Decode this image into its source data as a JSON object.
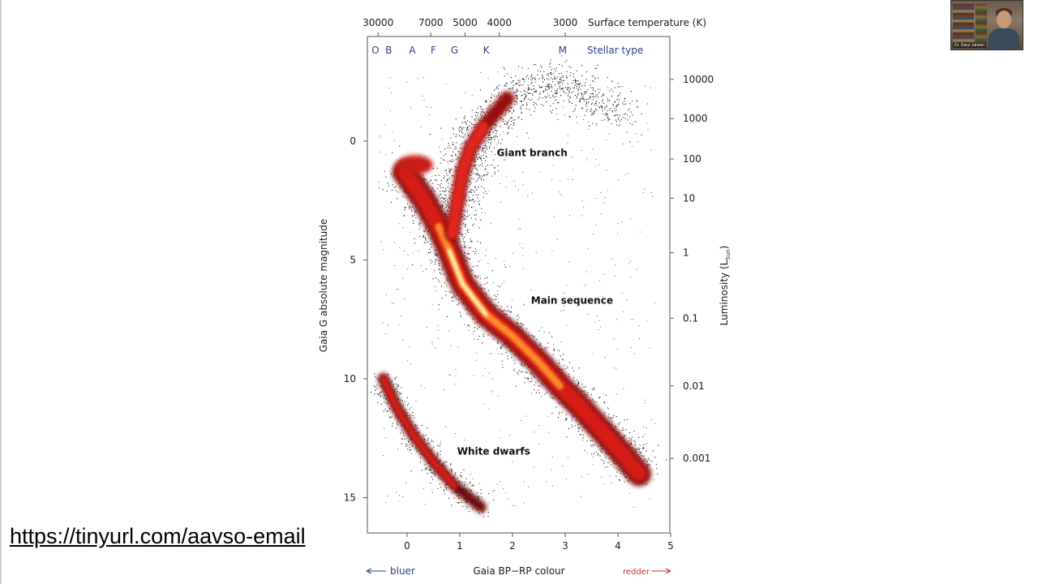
{
  "slide": {
    "link_text": "https://tinyurl.com/aavso-email"
  },
  "webcam": {
    "participant_name": "Dr. Daryl Janzen"
  },
  "chart_data": {
    "type": "scatter",
    "title": "",
    "xlabel": "Gaia BP−RP colour",
    "ylabel": "Gaia G absolute magnitude",
    "y2label": "Luminosity (L",
    "y2label_sub": "Sun",
    "y2label_close": ")",
    "top_axis_label": "Surface temperature (K)",
    "stellar_type_label": "Stellar type",
    "xlim": [
      -0.75,
      5.0
    ],
    "ylim": [
      16.0,
      -4.3
    ],
    "x_ticks": [
      0,
      1,
      2,
      3,
      4,
      5
    ],
    "y_ticks": [
      0,
      5,
      10,
      15
    ],
    "luminosity_ticks": [
      {
        "label": "10000",
        "mag": -2.6
      },
      {
        "label": "1000",
        "mag": -0.95
      },
      {
        "label": "100",
        "mag": 0.75
      },
      {
        "label": "10",
        "mag": 2.4
      },
      {
        "label": "1",
        "mag": 4.7
      },
      {
        "label": "0.1",
        "mag": 7.45
      },
      {
        "label": "0.01",
        "mag": 10.3
      },
      {
        "label": "0.001",
        "mag": 13.35
      }
    ],
    "temperature_ticks": [
      {
        "label": "30000",
        "x": -0.55
      },
      {
        "label": "7000",
        "x": 0.45
      },
      {
        "label": "5000",
        "x": 1.1
      },
      {
        "label": "4000",
        "x": 1.75
      },
      {
        "label": "3000",
        "x": 3.0
      }
    ],
    "stellar_types": [
      {
        "label": "O",
        "x": -0.6
      },
      {
        "label": "B",
        "x": -0.35
      },
      {
        "label": "A",
        "x": 0.1
      },
      {
        "label": "F",
        "x": 0.5
      },
      {
        "label": "G",
        "x": 0.9
      },
      {
        "label": "K",
        "x": 1.5
      },
      {
        "label": "M",
        "x": 2.95
      }
    ],
    "bluer_label": "bluer",
    "redder_label": "redder",
    "regions": [
      {
        "name": "Giant branch",
        "x": 1.7,
        "mag": 0.5
      },
      {
        "name": "Main sequence",
        "x": 2.35,
        "mag": 6.7
      },
      {
        "name": "White dwarfs",
        "x": 0.95,
        "mag": 13.05
      }
    ],
    "sequences": {
      "main_sequence": [
        [
          -0.05,
          1.3
        ],
        [
          0.3,
          2.4
        ],
        [
          0.6,
          3.6
        ],
        [
          0.8,
          4.6
        ],
        [
          1.05,
          6.0
        ],
        [
          1.5,
          7.3
        ],
        [
          2.0,
          8.2
        ],
        [
          2.5,
          9.3
        ],
        [
          2.9,
          10.3
        ],
        [
          3.3,
          11.2
        ],
        [
          3.7,
          12.2
        ],
        [
          4.1,
          13.2
        ],
        [
          4.4,
          14.0
        ]
      ],
      "giant_branch": [
        [
          0.85,
          3.9
        ],
        [
          0.95,
          2.6
        ],
        [
          1.05,
          1.3
        ],
        [
          1.2,
          0.3
        ],
        [
          1.45,
          -0.6
        ],
        [
          1.9,
          -1.8
        ],
        [
          2.6,
          -2.5
        ],
        [
          3.4,
          -2.0
        ],
        [
          4.2,
          -1.0
        ]
      ],
      "white_dwarfs": [
        [
          -0.45,
          10.0
        ],
        [
          -0.2,
          11.2
        ],
        [
          0.1,
          12.3
        ],
        [
          0.5,
          13.5
        ],
        [
          0.9,
          14.5
        ],
        [
          1.4,
          15.4
        ]
      ]
    }
  }
}
